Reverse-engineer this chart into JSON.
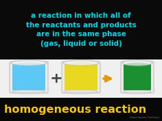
{
  "bg_color": "#ffffff",
  "top_bg_color": "#0a0a0a",
  "top_text": "a reaction in which all of\nthe reactants and products\nare in the same phase\n(gas, liquid or solid)",
  "top_text_color": "#00d8e8",
  "middle_bg_color": "#f0f0f0",
  "beaker1_liquid": "#5bc8f5",
  "beaker2_liquid": "#e8d820",
  "beaker3_liquid": "#1a9030",
  "beaker_rim_color": "#bbbbbb",
  "plus_color": "#444444",
  "arrow_color": "#e8960a",
  "bottom_bg_color": "#080808",
  "bottom_text": "homogeneous reaction",
  "bottom_text_color": "#f5c800",
  "small_text": "Game Smarts Flashcard",
  "small_text_color": "#777777",
  "figw": 2.36,
  "figh": 1.77,
  "dpi": 100
}
